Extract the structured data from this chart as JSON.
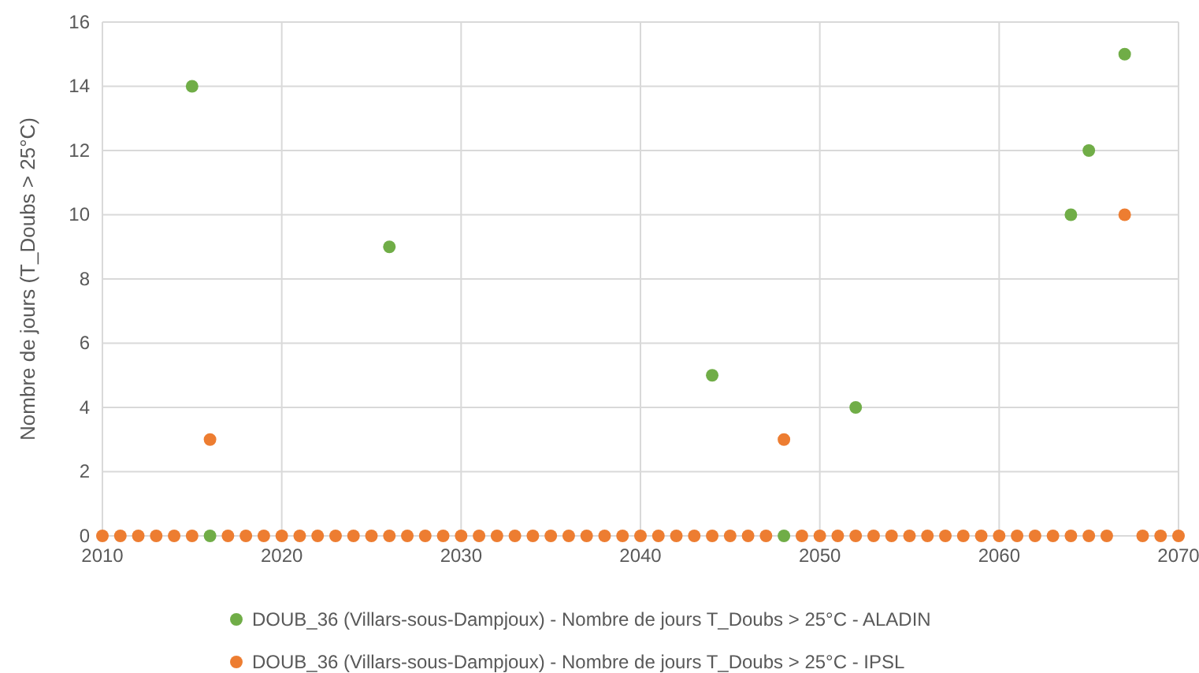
{
  "chart_data": {
    "type": "scatter",
    "ylabel": "Nombre de jours (T_Doubs > 25°C)",
    "x": [
      2010,
      2011,
      2012,
      2013,
      2014,
      2015,
      2016,
      2017,
      2018,
      2019,
      2020,
      2021,
      2022,
      2023,
      2024,
      2025,
      2026,
      2027,
      2028,
      2029,
      2030,
      2031,
      2032,
      2033,
      2034,
      2035,
      2036,
      2037,
      2038,
      2039,
      2040,
      2041,
      2042,
      2043,
      2044,
      2045,
      2046,
      2047,
      2048,
      2049,
      2050,
      2051,
      2052,
      2053,
      2054,
      2055,
      2056,
      2057,
      2058,
      2059,
      2060,
      2061,
      2062,
      2063,
      2064,
      2065,
      2066,
      2067,
      2068,
      2069,
      2070
    ],
    "series": [
      {
        "name": "DOUB_36 (Villars-sous-Dampjoux) - Nombre de jours T_Doubs > 25°C - ALADIN",
        "color": "#70ad47",
        "values": [
          null,
          null,
          null,
          null,
          null,
          14,
          0,
          null,
          null,
          null,
          null,
          null,
          null,
          null,
          null,
          null,
          9,
          null,
          null,
          null,
          null,
          null,
          null,
          null,
          null,
          null,
          null,
          null,
          null,
          null,
          null,
          null,
          null,
          null,
          5,
          null,
          null,
          null,
          0,
          null,
          null,
          null,
          4,
          null,
          null,
          null,
          null,
          null,
          null,
          null,
          null,
          null,
          null,
          null,
          10,
          12,
          null,
          15,
          null,
          null,
          null
        ]
      },
      {
        "name": "DOUB_36 (Villars-sous-Dampjoux) - Nombre de jours T_Doubs > 25°C - IPSL",
        "color": "#ed7d31",
        "values": [
          0,
          0,
          0,
          0,
          0,
          0,
          3,
          0,
          0,
          0,
          0,
          0,
          0,
          0,
          0,
          0,
          0,
          0,
          0,
          0,
          0,
          0,
          0,
          0,
          0,
          0,
          0,
          0,
          0,
          0,
          0,
          0,
          0,
          0,
          0,
          0,
          0,
          0,
          3,
          0,
          0,
          0,
          0,
          0,
          0,
          0,
          0,
          0,
          0,
          0,
          0,
          0,
          0,
          0,
          0,
          0,
          0,
          10,
          0,
          0,
          0
        ]
      }
    ],
    "xlim": [
      2010,
      2070
    ],
    "xticks": [
      2010,
      2020,
      2030,
      2040,
      2050,
      2060,
      2070
    ],
    "ylim": [
      0,
      16
    ],
    "yticks": [
      0,
      2,
      4,
      6,
      8,
      10,
      12,
      14,
      16
    ],
    "grid": true,
    "legend": "bottom",
    "marker": "circle"
  }
}
